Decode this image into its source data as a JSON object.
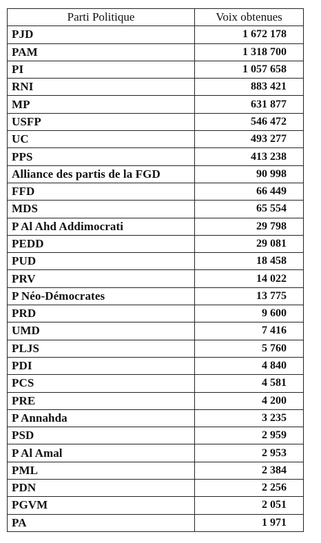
{
  "table": {
    "headers": {
      "party": "Parti Politique",
      "votes": "Voix obtenues"
    },
    "rows": [
      {
        "party": "PJD",
        "votes": "1 672 178"
      },
      {
        "party": "PAM",
        "votes": "1 318 700"
      },
      {
        "party": "PI",
        "votes": "1 057 658"
      },
      {
        "party": "RNI",
        "votes": "883 421"
      },
      {
        "party": "MP",
        "votes": "631 877"
      },
      {
        "party": "USFP",
        "votes": "546 472"
      },
      {
        "party": "UC",
        "votes": "493 277"
      },
      {
        "party": "PPS",
        "votes": "413 238"
      },
      {
        "party": "Alliance des partis de la FGD",
        "votes": "90 998"
      },
      {
        "party": "FFD",
        "votes": "66 449"
      },
      {
        "party": "MDS",
        "votes": "65 554"
      },
      {
        "party": "P Al Ahd Addimocrati",
        "votes": "29 798"
      },
      {
        "party": "PEDD",
        "votes": "29 081"
      },
      {
        "party": "PUD",
        "votes": "18 458"
      },
      {
        "party": "PRV",
        "votes": "14 022"
      },
      {
        "party": "P Néo-Démocrates",
        "votes": "13 775"
      },
      {
        "party": "PRD",
        "votes": "9 600"
      },
      {
        "party": "UMD",
        "votes": "7 416"
      },
      {
        "party": "PLJS",
        "votes": "5 760"
      },
      {
        "party": "PDI",
        "votes": "4 840"
      },
      {
        "party": "PCS",
        "votes": "4 581"
      },
      {
        "party": "PRE",
        "votes": "4 200"
      },
      {
        "party": "P Annahda",
        "votes": "3 235"
      },
      {
        "party": "PSD",
        "votes": "2 959"
      },
      {
        "party": "P Al Amal",
        "votes": "2 953"
      },
      {
        "party": "PML",
        "votes": "2 384"
      },
      {
        "party": "PDN",
        "votes": "2 256"
      },
      {
        "party": "PGVM",
        "votes": "2 051"
      },
      {
        "party": "PA",
        "votes": "1 971"
      }
    ]
  }
}
